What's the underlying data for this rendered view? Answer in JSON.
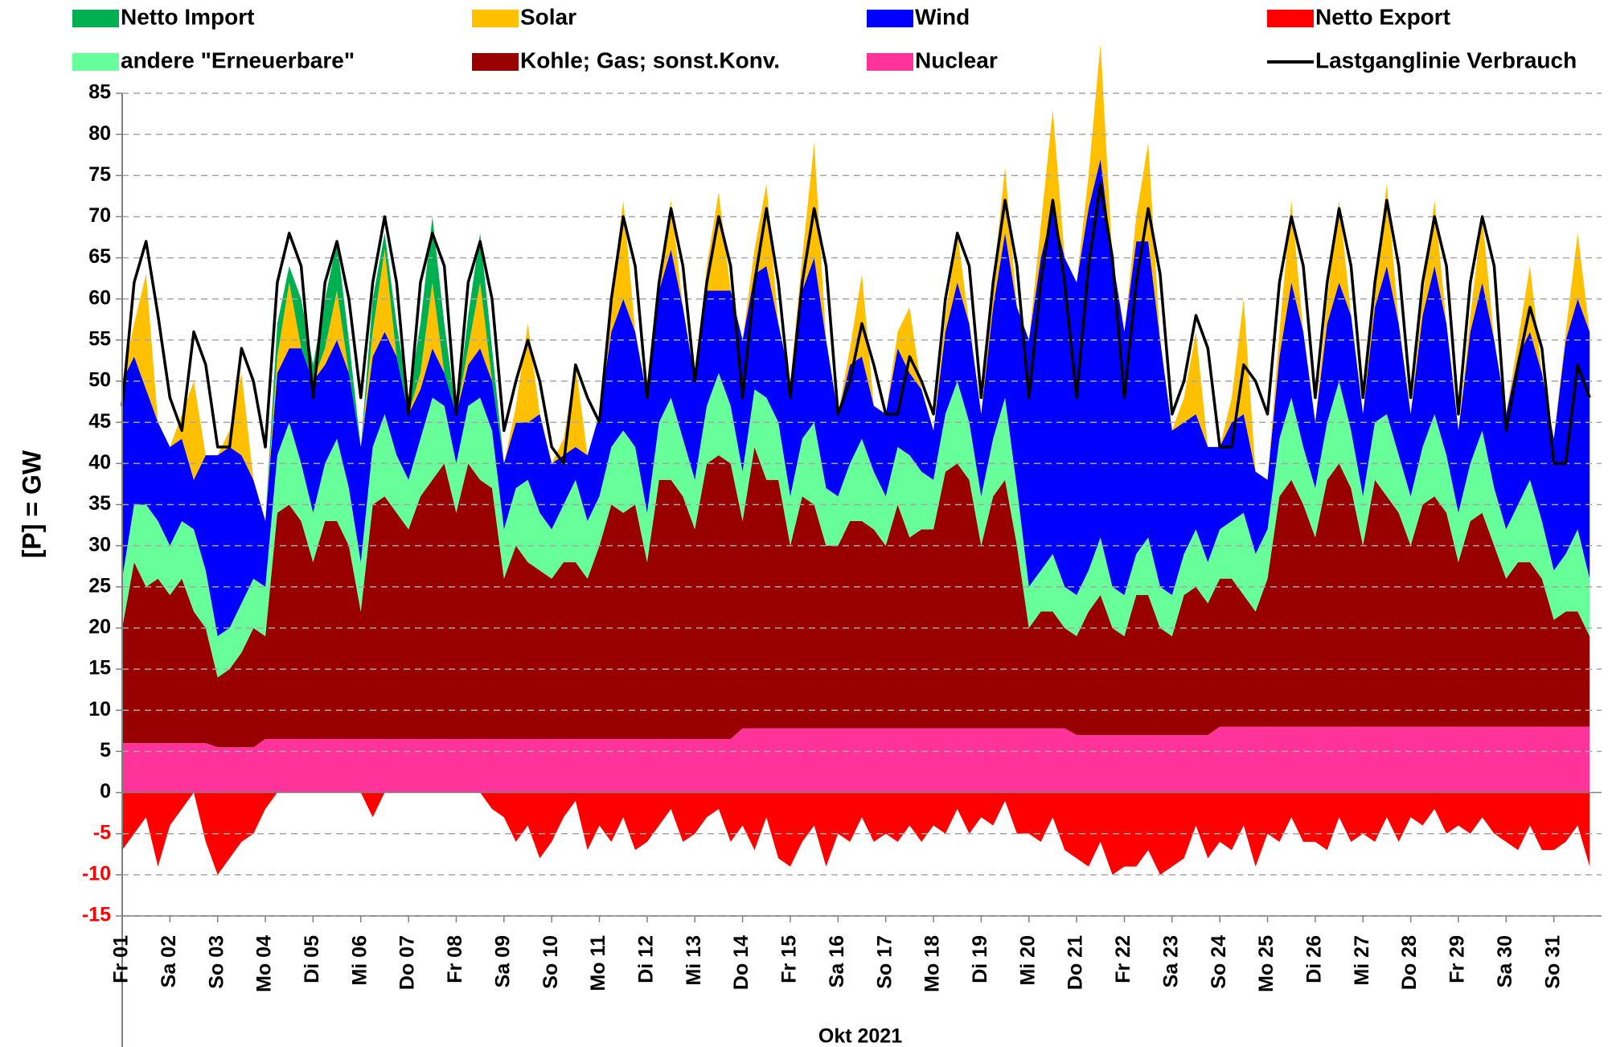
{
  "chart_data": {
    "type": "area",
    "x_title": "Okt 2021",
    "y_title": "[P]  =  GW",
    "ylim": [
      -15,
      85
    ],
    "yticks": [
      -15,
      -10,
      -5,
      0,
      5,
      10,
      15,
      20,
      25,
      30,
      35,
      40,
      45,
      50,
      55,
      60,
      65,
      70,
      75,
      80,
      85
    ],
    "grid": true,
    "categories": [
      "Fr 01",
      null,
      null,
      null,
      "Sa 02",
      null,
      null,
      null,
      "So 03",
      null,
      null,
      null,
      "Mo 04",
      null,
      null,
      null,
      "Di 05",
      null,
      null,
      null,
      "Mi 06",
      null,
      null,
      null,
      "Do 07",
      null,
      null,
      null,
      "Fr 08",
      null,
      null,
      null,
      "Sa 09",
      null,
      null,
      null,
      "So 10",
      null,
      null,
      null,
      "Mo 11",
      null,
      null,
      null,
      "Di 12",
      null,
      null,
      null,
      "Mi 13",
      null,
      null,
      null,
      "Do 14",
      null,
      null,
      null,
      "Fr 15",
      null,
      null,
      null,
      "Sa 16",
      null,
      null,
      null,
      "So 17",
      null,
      null,
      null,
      "Mo 18",
      null,
      null,
      null,
      "Di 19",
      null,
      null,
      null,
      "Mi 20",
      null,
      null,
      null,
      "Do 21",
      null,
      null,
      null,
      "Fr 22",
      null,
      null,
      null,
      "Sa 23",
      null,
      null,
      null,
      "So 24",
      null,
      null,
      null,
      "Mo 25",
      null,
      null,
      null,
      "Di 26",
      null,
      null,
      null,
      "Mi 27",
      null,
      null,
      null,
      "Do 28",
      null,
      null,
      null,
      "Fr 29",
      null,
      null,
      null,
      "Sa 30",
      null,
      null,
      null,
      "So 31",
      null,
      null,
      null
    ],
    "series": [
      {
        "name": "Nuclear",
        "kind": "area",
        "color": "#ff3399",
        "values": [
          6,
          6,
          6,
          6,
          6,
          6,
          6,
          6,
          5.5,
          5.5,
          5.5,
          5.5,
          6.5,
          6.5,
          6.5,
          6.5,
          6.5,
          6.5,
          6.5,
          6.5,
          6.5,
          6.5,
          6.5,
          6.5,
          6.5,
          6.5,
          6.5,
          6.5,
          6.5,
          6.5,
          6.5,
          6.5,
          6.5,
          6.5,
          6.5,
          6.5,
          6.5,
          6.5,
          6.5,
          6.5,
          6.5,
          6.5,
          6.5,
          6.5,
          6.5,
          6.5,
          6.5,
          6.5,
          6.5,
          6.5,
          6.5,
          6.5,
          7.8,
          7.8,
          7.8,
          7.8,
          7.8,
          7.8,
          7.8,
          7.8,
          7.8,
          7.8,
          7.8,
          7.8,
          7.8,
          7.8,
          7.8,
          7.8,
          7.8,
          7.8,
          7.8,
          7.8,
          7.8,
          7.8,
          7.8,
          7.8,
          7.8,
          7.8,
          7.8,
          7.8,
          7,
          7,
          7,
          7,
          7,
          7,
          7,
          7,
          7,
          7,
          7,
          7,
          8,
          8,
          8,
          8,
          8,
          8,
          8,
          8,
          8,
          8,
          8,
          8,
          8,
          8,
          8,
          8,
          8,
          8,
          8,
          8,
          8,
          8,
          8,
          8,
          8,
          8,
          8,
          8,
          8,
          8,
          8,
          8
        ]
      },
      {
        "name": "Kohle; Gas; sonst.Konv.",
        "kind": "area",
        "color": "#990000",
        "values": [
          14,
          22,
          19,
          20,
          18,
          20,
          16,
          14,
          8.5,
          9.5,
          11.5,
          14.5,
          12.5,
          27.5,
          28.5,
          26.5,
          21.5,
          26.5,
          26.5,
          23.5,
          15.5,
          28.5,
          29.5,
          27.5,
          25.5,
          29.5,
          31.5,
          33.5,
          27.5,
          33.5,
          31.5,
          30.5,
          19.5,
          23.5,
          21.5,
          20.5,
          19.5,
          21.5,
          21.5,
          19.5,
          23.5,
          28.5,
          27.5,
          28.5,
          21.5,
          31.5,
          31.5,
          29.5,
          25.5,
          33.5,
          34.5,
          33.5,
          25.2,
          34.2,
          30.2,
          30.2,
          22.2,
          28.2,
          27.2,
          22.2,
          22.2,
          25.2,
          25.2,
          24.2,
          22.2,
          27.2,
          23.2,
          24.2,
          24.2,
          31.2,
          32.2,
          30.2,
          22.2,
          28.2,
          30.2,
          22.2,
          12.2,
          14.2,
          14.2,
          12.2,
          12,
          15,
          17,
          13,
          12,
          17,
          17,
          13,
          12,
          17,
          18,
          16,
          18,
          18,
          16,
          14,
          18,
          28,
          30,
          27,
          23,
          30,
          32,
          29,
          22,
          30,
          28,
          26,
          22,
          27,
          28,
          26,
          20,
          25,
          26,
          22,
          18,
          20,
          20,
          18,
          13,
          14,
          14,
          11
        ]
      },
      {
        "name": "andere \"Erneuerbare\"",
        "kind": "area",
        "color": "#66ff99",
        "values": [
          6,
          7,
          10,
          7,
          6,
          7,
          10,
          7,
          5,
          5,
          6,
          6,
          6,
          7,
          10,
          7,
          6,
          7,
          10,
          7,
          6,
          7,
          10,
          7,
          6,
          7,
          10,
          7,
          6,
          7,
          10,
          7,
          6,
          7,
          10,
          7,
          6,
          7,
          10,
          7,
          6,
          7,
          10,
          7,
          6,
          7,
          10,
          7,
          6,
          7,
          10,
          7,
          6,
          7,
          10,
          7,
          6,
          7,
          10,
          7,
          6,
          7,
          10,
          7,
          6,
          7,
          10,
          7,
          6,
          7,
          10,
          7,
          6,
          7,
          10,
          7,
          5,
          5,
          7,
          5,
          5,
          5,
          7,
          5,
          5,
          5,
          7,
          5,
          5,
          5,
          7,
          5,
          6,
          7,
          10,
          7,
          6,
          7,
          10,
          7,
          6,
          7,
          10,
          7,
          6,
          7,
          10,
          7,
          6,
          7,
          10,
          7,
          6,
          7,
          10,
          7,
          6,
          7,
          10,
          7,
          6,
          7,
          10,
          7
        ]
      },
      {
        "name": "Wind",
        "kind": "area",
        "color": "#0000ff",
        "values": [
          24,
          18,
          14,
          12,
          12,
          10,
          6,
          14,
          22,
          22,
          18,
          12,
          8,
          10,
          9,
          14,
          16,
          12,
          12,
          14,
          14,
          11,
          10,
          12,
          8,
          6,
          6,
          4,
          6,
          5,
          6,
          6,
          8,
          8,
          7,
          12,
          8,
          6,
          4,
          8,
          10,
          14,
          16,
          14,
          14,
          16,
          18,
          16,
          12,
          14,
          10,
          14,
          16,
          14,
          16,
          12,
          14,
          18,
          20,
          18,
          10,
          12,
          10,
          8,
          10,
          12,
          10,
          10,
          6,
          10,
          12,
          12,
          10,
          16,
          20,
          22,
          30,
          38,
          42,
          40,
          38,
          44,
          46,
          40,
          32,
          38,
          36,
          30,
          20,
          16,
          14,
          14,
          10,
          12,
          12,
          10,
          6,
          10,
          14,
          14,
          8,
          12,
          12,
          14,
          10,
          14,
          18,
          16,
          10,
          16,
          18,
          16,
          10,
          16,
          18,
          18,
          14,
          18,
          18,
          18,
          16,
          26,
          28,
          30
        ]
      },
      {
        "name": "Solar",
        "kind": "area",
        "color": "#ffc000",
        "values": [
          0,
          4,
          14,
          0,
          0,
          3,
          12,
          0,
          0,
          2,
          10,
          0,
          0,
          2,
          8,
          0,
          0,
          2,
          6,
          0,
          0,
          3,
          10,
          0,
          0,
          2,
          8,
          0,
          0,
          2,
          8,
          0,
          0,
          2,
          12,
          0,
          0,
          2,
          10,
          0,
          0,
          4,
          12,
          0,
          0,
          2,
          6,
          0,
          0,
          3,
          12,
          0,
          0,
          3,
          10,
          0,
          0,
          4,
          14,
          0,
          0,
          2,
          10,
          0,
          0,
          2,
          8,
          0,
          0,
          2,
          6,
          0,
          0,
          3,
          8,
          0,
          0,
          4,
          12,
          0,
          0,
          4,
          14,
          0,
          0,
          3,
          12,
          0,
          0,
          3,
          10,
          0,
          0,
          3,
          14,
          0,
          0,
          3,
          10,
          0,
          0,
          3,
          10,
          0,
          0,
          3,
          10,
          0,
          0,
          2,
          8,
          0,
          0,
          2,
          8,
          0,
          0,
          2,
          8,
          0,
          0,
          1,
          8,
          0
        ]
      },
      {
        "name": "Netto Import",
        "kind": "area",
        "color": "#00b050",
        "values": [
          0,
          0,
          0,
          0,
          0,
          0,
          0,
          0,
          0,
          0,
          0,
          0,
          0,
          4,
          2,
          6,
          2,
          6,
          6,
          4,
          0,
          4,
          2,
          4,
          2,
          6,
          8,
          6,
          0,
          4,
          6,
          4,
          0,
          0,
          0,
          0,
          0,
          0,
          0,
          0,
          0,
          0,
          0,
          0,
          0,
          0,
          0,
          0,
          0,
          0,
          0,
          0,
          0,
          0,
          0,
          0,
          0,
          0,
          0,
          0,
          0,
          0,
          0,
          0,
          0,
          0,
          0,
          0,
          0,
          0,
          0,
          0,
          0,
          0,
          0,
          0,
          0,
          0,
          0,
          0,
          0,
          0,
          0,
          0,
          0,
          0,
          0,
          0,
          0,
          0,
          0,
          0,
          0,
          0,
          0,
          0,
          0,
          0,
          0,
          0,
          0,
          0,
          0,
          0,
          0,
          0,
          0,
          0,
          0,
          0,
          0,
          0,
          0,
          0,
          0,
          0,
          0,
          0,
          0,
          0,
          0,
          0,
          0,
          0
        ]
      },
      {
        "name": "Netto Export",
        "kind": "area",
        "color": "#ff0000",
        "values": [
          -7,
          -5,
          -3,
          -9,
          -4,
          -2,
          0,
          -6,
          -10,
          -8,
          -6,
          -5,
          -2,
          0,
          0,
          0,
          0,
          0,
          0,
          0,
          0,
          -3,
          0,
          0,
          0,
          0,
          0,
          0,
          0,
          0,
          0,
          -2,
          -3,
          -6,
          -4,
          -8,
          -6,
          -3,
          -1,
          -7,
          -4,
          -6,
          -3,
          -7,
          -6,
          -4,
          -2,
          -6,
          -5,
          -3,
          -2,
          -6,
          -4,
          -7,
          -3,
          -8,
          -9,
          -6,
          -4,
          -9,
          -5,
          -6,
          -3,
          -6,
          -5,
          -6,
          -4,
          -6,
          -4,
          -5,
          -2,
          -5,
          -3,
          -4,
          -1,
          -5,
          -5,
          -6,
          -3,
          -7,
          -8,
          -9,
          -6,
          -10,
          -9,
          -9,
          -7,
          -10,
          -9,
          -8,
          -4,
          -8,
          -6,
          -7,
          -4,
          -9,
          -5,
          -6,
          -3,
          -6,
          -6,
          -7,
          -3,
          -6,
          -5,
          -6,
          -3,
          -6,
          -3,
          -4,
          -2,
          -5,
          -4,
          -5,
          -3,
          -5,
          -6,
          -7,
          -4,
          -7,
          -7,
          -6,
          -4,
          -9
        ]
      },
      {
        "name": "Lastganglinie Verbrauch",
        "kind": "line",
        "color": "#000000",
        "values": [
          47,
          62,
          67,
          58,
          48,
          44,
          56,
          52,
          42,
          42,
          54,
          50,
          42,
          62,
          68,
          64,
          48,
          62,
          67,
          60,
          48,
          62,
          70,
          62,
          46,
          62,
          68,
          64,
          46,
          62,
          67,
          60,
          44,
          50,
          55,
          50,
          42,
          40,
          52,
          48,
          45,
          60,
          70,
          64,
          48,
          62,
          71,
          64,
          50,
          62,
          70,
          64,
          48,
          62,
          71,
          62,
          48,
          62,
          71,
          64,
          46,
          50,
          57,
          52,
          46,
          46,
          53,
          50,
          46,
          60,
          68,
          64,
          48,
          62,
          72,
          64,
          48,
          62,
          72,
          62,
          48,
          64,
          74,
          65,
          48,
          62,
          71,
          63,
          46,
          50,
          58,
          54,
          42,
          42,
          52,
          50,
          46,
          62,
          70,
          64,
          48,
          62,
          71,
          64,
          48,
          62,
          72,
          64,
          48,
          62,
          70,
          64,
          46,
          62,
          70,
          64,
          44,
          52,
          59,
          54,
          40,
          40,
          52,
          48
        ]
      }
    ]
  }
}
